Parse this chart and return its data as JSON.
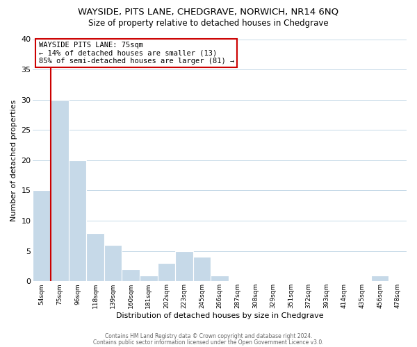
{
  "title": "WAYSIDE, PITS LANE, CHEDGRAVE, NORWICH, NR14 6NQ",
  "subtitle": "Size of property relative to detached houses in Chedgrave",
  "xlabel": "Distribution of detached houses by size in Chedgrave",
  "ylabel": "Number of detached properties",
  "bin_labels": [
    "54sqm",
    "75sqm",
    "96sqm",
    "118sqm",
    "139sqm",
    "160sqm",
    "181sqm",
    "202sqm",
    "223sqm",
    "245sqm",
    "266sqm",
    "287sqm",
    "308sqm",
    "329sqm",
    "351sqm",
    "372sqm",
    "393sqm",
    "414sqm",
    "435sqm",
    "456sqm",
    "478sqm"
  ],
  "bar_heights": [
    15,
    30,
    20,
    8,
    6,
    2,
    1,
    3,
    5,
    4,
    1,
    0,
    0,
    0,
    0,
    0,
    0,
    0,
    0,
    1,
    0
  ],
  "bar_color": "#c6d9e8",
  "marker_bar_index": 1,
  "marker_line_color": "#cc0000",
  "ylim": [
    0,
    40
  ],
  "yticks": [
    0,
    5,
    10,
    15,
    20,
    25,
    30,
    35,
    40
  ],
  "annotation_line1": "WAYSIDE PITS LANE: 75sqm",
  "annotation_line2": "← 14% of detached houses are smaller (13)",
  "annotation_line3": "85% of semi-detached houses are larger (81) →",
  "annotation_box_color": "#ffffff",
  "annotation_box_edge": "#cc0000",
  "footer_line1": "Contains HM Land Registry data © Crown copyright and database right 2024.",
  "footer_line2": "Contains public sector information licensed under the Open Government Licence v3.0.",
  "background_color": "#ffffff",
  "grid_color": "#c6d9e8"
}
